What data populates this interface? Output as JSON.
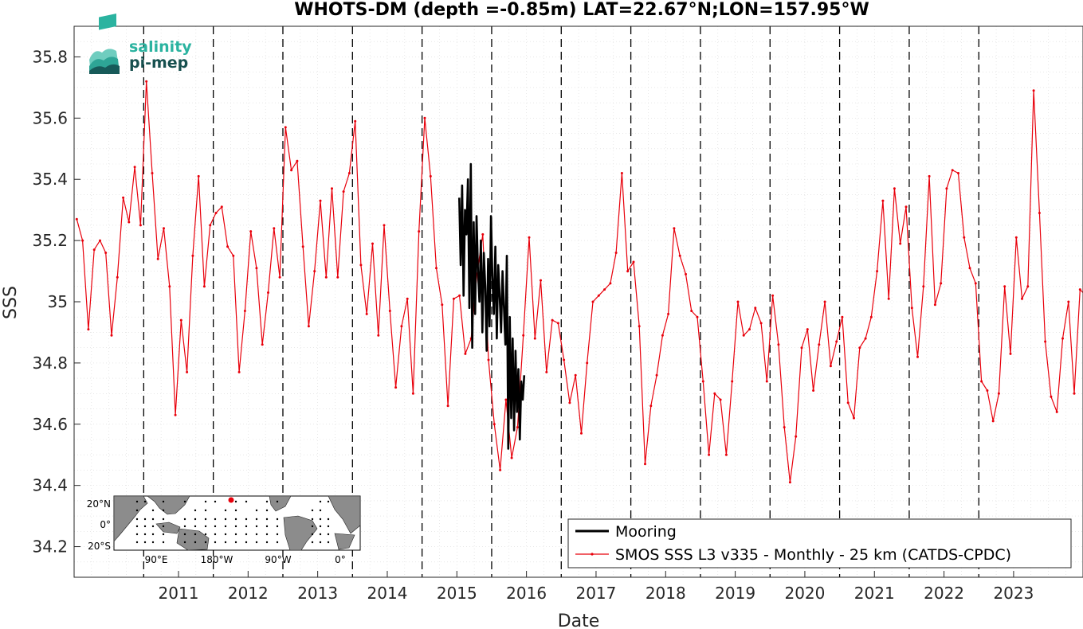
{
  "chart_data": {
    "type": "line",
    "title": "WHOTS-DM (depth =-0.85m) LAT=22.67°N;LON=157.95°W",
    "xlabel": "Date",
    "ylabel": "SSS",
    "xlim": [
      "2010-01-01",
      "2024-07-01"
    ],
    "ylim": [
      34.1,
      35.9
    ],
    "x_ticks": [
      "2011",
      "2012",
      "2013",
      "2014",
      "2015",
      "2016",
      "2017",
      "2018",
      "2019",
      "2020",
      "2021",
      "2022",
      "2023"
    ],
    "y_ticks": [
      "34.2",
      "34.4",
      "34.6",
      "34.8",
      "35",
      "35.2",
      "35.4",
      "35.6",
      "35.8"
    ],
    "year_boundaries": [
      "2011-01-01",
      "2012-01-01",
      "2013-01-01",
      "2014-01-01",
      "2015-01-01",
      "2016-01-01",
      "2017-01-01",
      "2018-01-01",
      "2019-01-01",
      "2020-01-01",
      "2021-01-01",
      "2022-01-01",
      "2023-01-01"
    ],
    "grid": true,
    "legend_position": "bottom-right",
    "series": [
      {
        "name": "Mooring",
        "color": "#000000",
        "style": "thick line",
        "start": "2015-07-15",
        "end": "2016-06-20",
        "values": [
          35.34,
          35.12,
          35.38,
          35.02,
          35.3,
          35.22,
          35.4,
          34.98,
          35.45,
          34.85,
          35.26,
          34.96,
          35.28,
          35.1,
          35.0,
          35.2,
          34.9,
          35.16,
          35.05,
          34.84,
          35.14,
          34.92,
          35.28,
          35.08,
          34.96,
          35.18,
          34.88,
          35.12,
          35.02,
          34.9,
          35.1,
          34.98,
          34.86,
          35.15,
          34.52,
          34.95,
          34.62,
          34.88,
          34.58,
          34.84,
          34.64,
          34.78,
          34.55,
          34.74,
          34.68,
          34.76
        ]
      },
      {
        "name": "SMOS SSS L3 v335 - Monthly - 25 km (CATDS-CPDC)",
        "color": "#e8000b",
        "style": "line with point markers",
        "start": "2010-01-15",
        "interval": "monthly",
        "values": [
          35.27,
          35.2,
          34.91,
          35.17,
          35.2,
          35.16,
          34.89,
          35.08,
          35.34,
          35.26,
          35.44,
          35.25,
          35.72,
          35.42,
          35.14,
          35.24,
          35.05,
          34.63,
          34.94,
          34.77,
          35.15,
          35.41,
          35.05,
          35.25,
          35.29,
          35.31,
          35.18,
          35.15,
          34.77,
          34.97,
          35.23,
          35.11,
          34.86,
          35.03,
          35.24,
          35.08,
          35.57,
          35.43,
          35.46,
          35.18,
          34.92,
          35.1,
          35.33,
          35.08,
          35.37,
          35.08,
          35.36,
          35.42,
          35.59,
          35.12,
          34.96,
          35.19,
          34.89,
          35.25,
          34.97,
          34.72,
          34.92,
          35.01,
          34.7,
          35.23,
          35.6,
          35.41,
          35.11,
          34.99,
          34.66,
          35.01,
          35.02,
          34.83,
          34.88,
          35.09,
          35.22,
          34.81,
          34.6,
          34.45,
          34.68,
          34.49,
          34.59,
          34.89,
          35.21,
          34.88,
          35.07,
          34.77,
          34.94,
          34.93,
          34.81,
          34.67,
          34.76,
          34.57,
          34.8,
          35.0,
          35.02,
          35.04,
          35.06,
          35.16,
          35.42,
          35.1,
          35.13,
          34.92,
          34.47,
          34.66,
          34.76,
          34.89,
          34.96,
          35.24,
          35.15,
          35.09,
          34.97,
          34.95,
          34.74,
          34.5,
          34.7,
          34.68,
          34.5,
          34.74,
          35.0,
          34.89,
          34.91,
          34.98,
          34.93,
          34.74,
          35.02,
          34.86,
          34.59,
          34.41,
          34.56,
          34.85,
          34.91,
          34.71,
          34.86,
          35.0,
          34.79,
          34.87,
          34.95,
          34.67,
          34.62,
          34.85,
          34.88,
          34.95,
          35.1,
          35.33,
          35.01,
          35.37,
          35.19,
          35.31,
          34.98,
          34.82,
          35.05,
          35.41,
          34.99,
          35.06,
          35.37,
          35.43,
          35.42,
          35.21,
          35.11,
          35.06,
          34.74,
          34.71,
          34.61,
          34.7,
          35.05,
          34.83,
          35.21,
          35.01,
          35.05,
          35.69,
          35.29,
          34.87,
          34.69,
          34.64,
          34.88,
          35.0,
          34.7,
          35.04,
          35.02
        ]
      }
    ],
    "inset_map": {
      "lat_ticks": [
        "20°N",
        "0°",
        "20°S"
      ],
      "lon_ticks": [
        "90°E",
        "180°W",
        "90°W",
        "0°"
      ]
    }
  },
  "logo": {
    "line1": "salinity",
    "line2": "pi-mep",
    "color1": "#2bb3a0",
    "color2": "#17504f"
  },
  "colors": {
    "mooring": "#000000",
    "smos": "#e8000b",
    "grid": "#d9d9d9",
    "axis": "#262626"
  }
}
